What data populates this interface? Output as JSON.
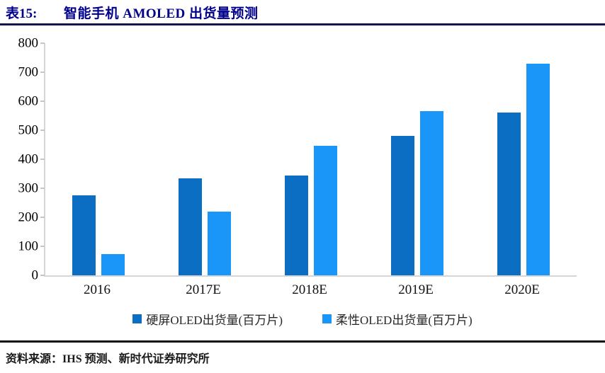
{
  "header": {
    "tag": "表15:",
    "title": "智能手机 AMOLED 出货量预测"
  },
  "chart_data": {
    "type": "bar",
    "title": "智能手机 AMOLED 出货量预测",
    "categories": [
      "2016",
      "2017E",
      "2018E",
      "2019E",
      "2020E"
    ],
    "series": [
      {
        "name": "硬屏OLED出货量(百万片)",
        "color": "#0b6ec3",
        "values": [
          275,
          335,
          345,
          480,
          560
        ]
      },
      {
        "name": "柔性OLED出货量(百万片)",
        "color": "#1996f8",
        "values": [
          72,
          220,
          447,
          565,
          730
        ]
      }
    ],
    "xlabel": "",
    "ylabel": "",
    "ylim": [
      0,
      800
    ],
    "ytick_step": 100,
    "yticks": [
      "0",
      "100",
      "200",
      "300",
      "400",
      "500",
      "600",
      "700",
      "800"
    ],
    "grid": false,
    "legend_position": "bottom"
  },
  "footer": {
    "source_label": "资料来源：",
    "source_text": "IHS 预测、新时代证券研究所"
  }
}
